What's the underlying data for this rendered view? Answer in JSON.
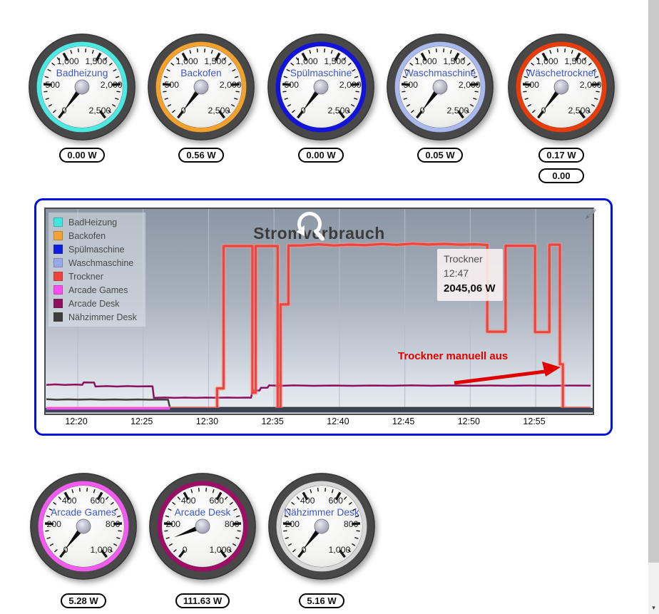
{
  "scales": {
    "2500": [
      "0",
      "500",
      "1,000",
      "1,500",
      "2,000",
      "2,500"
    ],
    "1000": [
      "0",
      "200",
      "400",
      "600",
      "800",
      "1,000"
    ]
  },
  "top_gauges": [
    {
      "label": "Badheizung",
      "ring_color": "#4be9e2",
      "scale_max": 2500,
      "watts": 0,
      "value": "0.00 W"
    },
    {
      "label": "Backofen",
      "ring_color": "#f3a12d",
      "scale_max": 2500,
      "watts": 0.56,
      "value": "0.56 W"
    },
    {
      "label": "Spülmaschine",
      "ring_color": "#1213dd",
      "scale_max": 2500,
      "watts": 0,
      "value": "0.00 W"
    },
    {
      "label": "Waschmaschine",
      "ring_color": "#a9b9ee",
      "scale_max": 2500,
      "watts": 0.05,
      "value": "0.05 W"
    },
    {
      "label": "Wäschetrockner",
      "ring_color": "#e93c09",
      "scale_max": 2500,
      "watts": 0.17,
      "value": "0.17 W",
      "extra_value": "0.00"
    }
  ],
  "bottom_gauges": [
    {
      "label": "Arcade Games",
      "ring_color": "#f25bef",
      "scale_max": 1000,
      "watts": 5.28,
      "value": "5.28 W"
    },
    {
      "label": "Arcade Desk",
      "ring_color": "#9e0e66",
      "scale_max": 1000,
      "watts": 111.63,
      "value": "111.63 W"
    },
    {
      "label": "Nähzimmer Desk",
      "ring_color": "#d7d7d7",
      "scale_max": 1000,
      "watts": 5.16,
      "value": "5.16 W"
    }
  ],
  "chart_data": {
    "type": "line",
    "title": "Stromverbrauch",
    "xlabel": "",
    "ylabel": "",
    "x_ticks": [
      "12:20",
      "12:25",
      "12:30",
      "12:35",
      "12:40",
      "12:45",
      "12:50",
      "12:55"
    ],
    "x_tick_minutes": [
      20,
      25,
      30,
      35,
      40,
      45,
      50,
      55
    ],
    "x_range_minutes": [
      17.6,
      59.2
    ],
    "y_range_watts": [
      0,
      2500
    ],
    "grid": "vertical",
    "legend_position": "top-left",
    "legend": [
      {
        "label": "BadHeizung",
        "color": "#3fe7df"
      },
      {
        "label": "Backofen",
        "color": "#f3a233"
      },
      {
        "label": "Spülmaschine",
        "color": "#0f1ddf"
      },
      {
        "label": "Waschmaschine",
        "color": "#98a9ea"
      },
      {
        "label": "Trockner",
        "color": "#ee443d"
      },
      {
        "label": "Arcade Games",
        "color": "#f84ef1"
      },
      {
        "label": "Arcade Desk",
        "color": "#8c1060"
      },
      {
        "label": "Nähzimmer Desk",
        "color": "#3d3d3d"
      }
    ],
    "series": [
      {
        "name": "BadHeizung",
        "color": "#3fe7df",
        "width": 2,
        "points": [
          [
            17.6,
            0
          ],
          [
            59.2,
            0
          ]
        ]
      },
      {
        "name": "Backofen",
        "color": "#f3a233",
        "width": 2,
        "points": [
          [
            17.6,
            0
          ],
          [
            59.2,
            0
          ]
        ]
      },
      {
        "name": "Spülmaschine",
        "color": "#0f1ddf",
        "width": 2,
        "points": [
          [
            17.6,
            0
          ],
          [
            59.2,
            0
          ]
        ]
      },
      {
        "name": "Waschmaschine",
        "color": "#98a9ea",
        "width": 2,
        "points": [
          [
            17.6,
            0
          ],
          [
            59.2,
            0
          ]
        ]
      },
      {
        "name": "Nähzimmer Desk",
        "color": "#3d3d3d",
        "width": 2.5,
        "points": [
          [
            17.6,
            118
          ],
          [
            18.4,
            112
          ],
          [
            19.2,
            117
          ],
          [
            20.1,
            113
          ],
          [
            21,
            117
          ],
          [
            21.9,
            112
          ],
          [
            22.8,
            116
          ],
          [
            23.7,
            112
          ],
          [
            24.6,
            116
          ],
          [
            25.5,
            112
          ],
          [
            26.4,
            115
          ],
          [
            26.9,
            113
          ],
          [
            27.05,
            10
          ],
          [
            59.2,
            10
          ]
        ]
      },
      {
        "name": "Arcade Desk",
        "color": "#8c1060",
        "width": 2.5,
        "points": [
          [
            17.6,
            298
          ],
          [
            18.3,
            305
          ],
          [
            19,
            298
          ],
          [
            19.8,
            302
          ],
          [
            20.35,
            300
          ],
          [
            20.45,
            330
          ],
          [
            21.25,
            328
          ],
          [
            21.35,
            278
          ],
          [
            22.2,
            283
          ],
          [
            23,
            278
          ],
          [
            23.8,
            283
          ],
          [
            24.6,
            279
          ],
          [
            25.4,
            282
          ],
          [
            25.72,
            280
          ],
          [
            25.82,
            135
          ],
          [
            26.6,
            140
          ],
          [
            27.4,
            135
          ],
          [
            28.2,
            139
          ],
          [
            29,
            135
          ],
          [
            29.8,
            139
          ],
          [
            30.6,
            136
          ],
          [
            31.4,
            139
          ],
          [
            32.2,
            136
          ],
          [
            33,
            139
          ],
          [
            33.25,
            137
          ],
          [
            33.35,
            228
          ],
          [
            33.9,
            228
          ],
          [
            34,
            262
          ],
          [
            34.5,
            262
          ],
          [
            34.62,
            292
          ],
          [
            35.5,
            287
          ],
          [
            36.5,
            292
          ],
          [
            38,
            287
          ],
          [
            39.5,
            291
          ],
          [
            41,
            287
          ],
          [
            42.5,
            291
          ],
          [
            44,
            288
          ],
          [
            45.5,
            292
          ],
          [
            47,
            288
          ],
          [
            48.5,
            291
          ],
          [
            50,
            288
          ],
          [
            51.5,
            291
          ],
          [
            53,
            288
          ],
          [
            54.5,
            291
          ],
          [
            56,
            288
          ],
          [
            57.5,
            291
          ],
          [
            59.2,
            289
          ]
        ]
      },
      {
        "name": "Trockner",
        "color": "#ee443d",
        "width": 3.2,
        "points": [
          [
            17.6,
            0
          ],
          [
            30.65,
            0
          ],
          [
            30.65,
            255
          ],
          [
            31.15,
            255
          ],
          [
            31.15,
            2045
          ],
          [
            33.35,
            2045
          ],
          [
            33.35,
            200
          ],
          [
            33.6,
            200
          ],
          [
            33.6,
            2045
          ],
          [
            35.28,
            2045
          ],
          [
            35.28,
            0
          ],
          [
            35.5,
            0
          ],
          [
            35.5,
            1310
          ],
          [
            36.1,
            1310
          ],
          [
            36.1,
            2050
          ],
          [
            37.2,
            2052
          ],
          [
            38.4,
            2066
          ],
          [
            39.6,
            2052
          ],
          [
            40.8,
            2062
          ],
          [
            42,
            2056
          ],
          [
            43.2,
            2070
          ],
          [
            44.4,
            2060
          ],
          [
            45.6,
            2074
          ],
          [
            46.8,
            2064
          ],
          [
            48,
            2072
          ],
          [
            49.2,
            2062
          ],
          [
            50.4,
            2066
          ],
          [
            51.3,
            2058
          ],
          [
            51.3,
            968
          ],
          [
            52.7,
            968
          ],
          [
            52.7,
            2048
          ],
          [
            54.95,
            2048
          ],
          [
            54.95,
            962
          ],
          [
            56.05,
            962
          ],
          [
            56.05,
            2062
          ],
          [
            56.85,
            2062
          ],
          [
            56.85,
            558
          ],
          [
            57.08,
            558
          ],
          [
            57.08,
            0
          ],
          [
            59.2,
            0
          ]
        ]
      },
      {
        "name": "Arcade Games",
        "color": "#f84ef1",
        "width": 3.5,
        "points": [
          [
            17.6,
            3
          ],
          [
            27.05,
            3
          ]
        ]
      }
    ],
    "tooltip": {
      "series": "Trockner",
      "time": "12:47",
      "value": "2045,06 W"
    },
    "annotation": {
      "text": "Trockner manuell aus"
    }
  },
  "scrollbar": {
    "down_glyph": "▾"
  },
  "colors": {
    "panel_border": "#0013d8",
    "plot_bg_top": "#8c97a5",
    "plot_bg_bottom": "#e9edf2",
    "axis_band": "#3b4254",
    "grid": "#b4bcc8",
    "annotation_red": "#e00000",
    "gauge_name_blue": "#3d55cc"
  }
}
